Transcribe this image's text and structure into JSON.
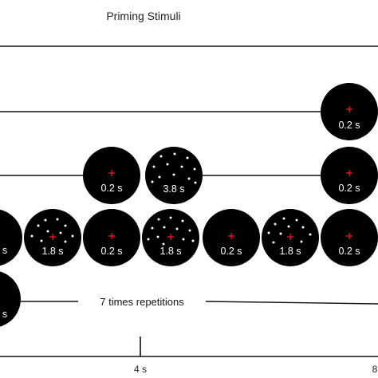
{
  "title": "Priming Stimuli",
  "repetition_label": "7 times repetitions",
  "ticks": [
    "4 s",
    "8"
  ],
  "colors": {
    "stimulus": "#000000",
    "fixation": "#e0141e",
    "dot": "#ffffff",
    "line": "#111111"
  },
  "stimuli": [
    {
      "row": 1,
      "kind": "fixation",
      "duration": "0.2 s"
    },
    {
      "row": 2,
      "kind": "fixation",
      "duration": "0.2 s"
    },
    {
      "row": 2,
      "kind": "dots",
      "duration": "3.8 s"
    },
    {
      "row": 2,
      "kind": "fixation",
      "duration": "0.2 s"
    },
    {
      "row": 3,
      "kind": "fixation",
      "duration": "s"
    },
    {
      "row": 3,
      "kind": "dots",
      "duration": "1.8 s"
    },
    {
      "row": 3,
      "kind": "fixation",
      "duration": "0.2 s"
    },
    {
      "row": 3,
      "kind": "dots",
      "duration": "1.8 s"
    },
    {
      "row": 3,
      "kind": "fixation",
      "duration": "0.2 s"
    },
    {
      "row": 3,
      "kind": "dots",
      "duration": "1.8 s"
    },
    {
      "row": 3,
      "kind": "fixation",
      "duration": "0.2 s"
    },
    {
      "row": 4,
      "kind": "fixation",
      "duration": "s"
    }
  ]
}
